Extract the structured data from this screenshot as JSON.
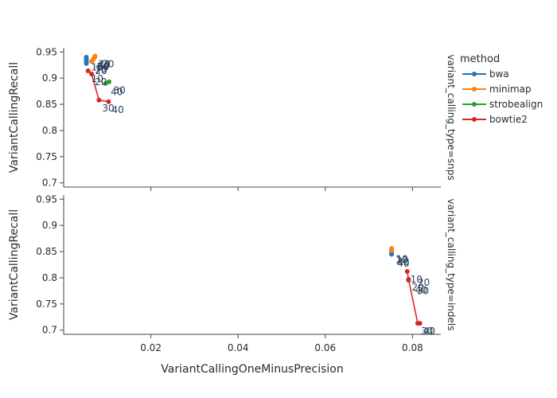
{
  "chart_data": {
    "type": "line",
    "xlabel": "VariantCallingOneMinusPrecision",
    "ylabel": "VariantCallingRecall",
    "xlim": [
      0,
      0.0865
    ],
    "ylim": [
      0.692,
      0.958
    ],
    "xticks": [
      0.02,
      0.04,
      0.06,
      0.08
    ],
    "yticks": [
      0.7,
      0.75,
      0.8,
      0.85,
      0.9,
      0.95
    ],
    "legend": {
      "title": "method",
      "placement": "right"
    },
    "facets": [
      {
        "label": "variant_calling_type=snps",
        "series": [
          {
            "name": "bwa",
            "color": "#1f77b4",
            "points": [
              {
                "x": 0.0052,
                "y": 0.94,
                "label": ""
              },
              {
                "x": 0.0052,
                "y": 0.936,
                "label": ""
              },
              {
                "x": 0.0052,
                "y": 0.932,
                "label": ""
              },
              {
                "x": 0.0052,
                "y": 0.928,
                "label": ""
              }
            ]
          },
          {
            "name": "minimap",
            "color": "#ff7f0e",
            "points": [
              {
                "x": 0.0064,
                "y": 0.932,
                "label": "10"
              },
              {
                "x": 0.0068,
                "y": 0.936,
                "label": "30"
              },
              {
                "x": 0.0071,
                "y": 0.94,
                "label": "40"
              },
              {
                "x": 0.0072,
                "y": 0.942,
                "label": "20"
              }
            ]
          },
          {
            "name": "strobealign",
            "color": "#2ca02c",
            "points": [
              {
                "x": 0.0096,
                "y": 0.89,
                "label": ""
              },
              {
                "x": 0.0104,
                "y": 0.893,
                "label": ""
              }
            ]
          },
          {
            "name": "bowtie2",
            "color": "#d62728",
            "points": [
              {
                "x": 0.0056,
                "y": 0.914,
                "label": "10"
              },
              {
                "x": 0.0064,
                "y": 0.908,
                "label": "20"
              },
              {
                "x": 0.0081,
                "y": 0.858,
                "label": "30"
              },
              {
                "x": 0.0103,
                "y": 0.855,
                "label": "40"
              }
            ]
          }
        ],
        "extra_labels": [
          {
            "x": 0.0063,
            "y": 0.921,
            "text": "10"
          },
          {
            "x": 0.0072,
            "y": 0.914,
            "text": "20"
          },
          {
            "x": 0.0077,
            "y": 0.922,
            "text": "30"
          },
          {
            "x": 0.0088,
            "y": 0.927,
            "text": "20"
          },
          {
            "x": 0.0108,
            "y": 0.874,
            "text": "40"
          },
          {
            "x": 0.0114,
            "y": 0.877,
            "text": "30"
          }
        ]
      },
      {
        "label": "variant_calling_type=indels",
        "series": [
          {
            "name": "bwa",
            "color": "#1f77b4",
            "points": [
              {
                "x": 0.0752,
                "y": 0.845,
                "label": ""
              },
              {
                "x": 0.0752,
                "y": 0.849,
                "label": ""
              }
            ]
          },
          {
            "name": "minimap",
            "color": "#ff7f0e",
            "points": [
              {
                "x": 0.0752,
                "y": 0.852,
                "label": ""
              },
              {
                "x": 0.0752,
                "y": 0.856,
                "label": ""
              }
            ]
          },
          {
            "name": "strobealign",
            "color": "#2ca02c",
            "points": [
              {
                "x": 0.0791,
                "y": 0.795,
                "label": ""
              }
            ]
          },
          {
            "name": "bowtie2",
            "color": "#d62728",
            "points": [
              {
                "x": 0.0788,
                "y": 0.812,
                "label": "10"
              },
              {
                "x": 0.0791,
                "y": 0.797,
                "label": "20"
              },
              {
                "x": 0.0812,
                "y": 0.713,
                "label": "30"
              },
              {
                "x": 0.0817,
                "y": 0.713,
                "label": "40"
              }
            ]
          }
        ],
        "extra_labels": [
          {
            "x": 0.0762,
            "y": 0.836,
            "text": "10"
          },
          {
            "x": 0.0762,
            "y": 0.833,
            "text": "20"
          },
          {
            "x": 0.0765,
            "y": 0.83,
            "text": "30"
          },
          {
            "x": 0.0765,
            "y": 0.827,
            "text": "40"
          },
          {
            "x": 0.0812,
            "y": 0.791,
            "text": "20"
          },
          {
            "x": 0.081,
            "y": 0.775,
            "text": "30"
          },
          {
            "x": 0.0806,
            "y": 0.776,
            "text": "40"
          }
        ]
      }
    ]
  }
}
